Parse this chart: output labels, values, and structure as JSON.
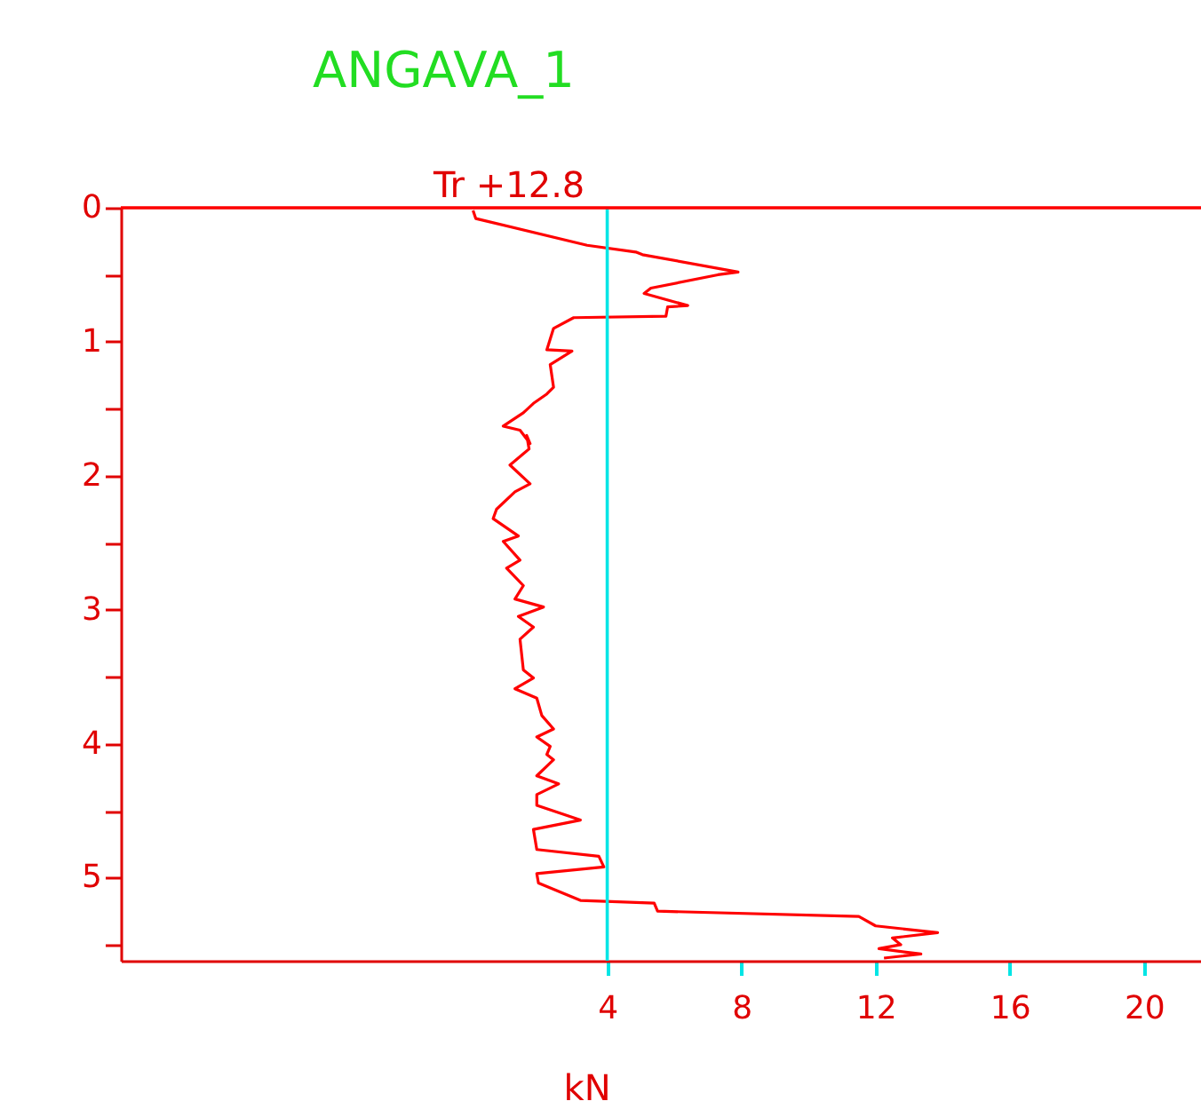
{
  "chart_data": {
    "type": "line",
    "title": "ANGAVA_1",
    "xlabel": "kN",
    "annotations": [
      "Tr  +12.8"
    ],
    "series": [
      {
        "color": "#ff0000",
        "x": [
          0,
          0.08,
          3.4,
          4.85,
          5.05,
          7.9,
          7.3,
          5.3,
          5.1,
          6.4,
          5.8,
          5.75,
          3.0,
          2.4,
          2.2,
          2.95,
          2.3,
          2.4,
          2.2,
          1.8,
          1.5,
          0.9,
          1.4,
          1.7,
          1.6,
          1.67,
          1.1,
          1.7,
          1.25,
          0.7,
          0.6,
          1.35,
          0.9,
          1.4,
          1.0,
          1.5,
          1.25,
          2.1,
          1.35,
          1.8,
          1.4,
          1.5,
          1.8,
          1.25,
          1.9,
          2.05,
          2.4,
          1.9,
          2.3,
          2.2,
          2.4,
          1.9,
          2.55,
          1.9,
          1.9,
          3.2,
          1.8,
          1.9,
          3.75,
          3.9,
          1.9,
          1.95,
          3.2,
          5.4,
          5.5,
          11.5,
          12.0,
          13.85,
          12.5,
          12.75,
          12.1,
          13.35,
          12.25
        ],
        "values": [
          0.02,
          0.08,
          0.28,
          0.33,
          0.35,
          0.48,
          0.5,
          0.6,
          0.64,
          0.73,
          0.74,
          0.81,
          0.82,
          0.9,
          1.06,
          1.07,
          1.17,
          1.34,
          1.39,
          1.46,
          1.53,
          1.63,
          1.66,
          1.76,
          1.7,
          1.8,
          1.92,
          2.06,
          2.12,
          2.25,
          2.32,
          2.45,
          2.49,
          2.63,
          2.69,
          2.82,
          2.92,
          2.98,
          3.05,
          3.13,
          3.22,
          3.45,
          3.51,
          3.59,
          3.66,
          3.79,
          3.89,
          3.95,
          4.02,
          4.08,
          4.12,
          4.24,
          4.3,
          4.38,
          4.46,
          4.57,
          4.64,
          4.79,
          4.84,
          4.92,
          4.97,
          5.04,
          5.17,
          5.19,
          5.25,
          5.29,
          5.36,
          5.41,
          5.45,
          5.5,
          5.53,
          5.57,
          5.6
        ]
      }
    ],
    "xlim": [
      -10.5,
      21.7
    ],
    "xticks": [
      4,
      8,
      12,
      16,
      20
    ],
    "ylim": [
      5.62,
      0
    ],
    "yticks": [
      0,
      {
        "value": 0.5,
        "label": null
      },
      1,
      {
        "value": 1.5,
        "label": null
      },
      2,
      {
        "value": 2.5,
        "label": null
      },
      3,
      {
        "value": 3.5,
        "label": null
      },
      4,
      {
        "value": 4.5,
        "label": null
      },
      5,
      {
        "value": 5.5,
        "label": null
      }
    ],
    "ref_lines": [
      {
        "axis": "x",
        "value": 4,
        "color": "#00e5e5"
      },
      {
        "axis": "y",
        "value": 0,
        "color": "#ff0000"
      }
    ],
    "grid": false,
    "marker": "none",
    "line_style": "solid"
  }
}
